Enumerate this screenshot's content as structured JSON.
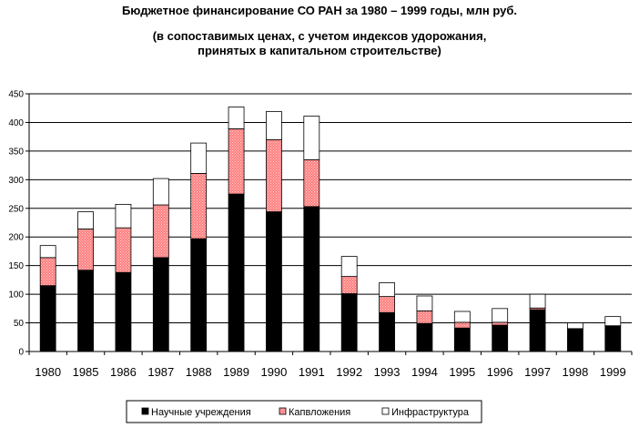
{
  "chart_data": {
    "type": "bar",
    "stacked": true,
    "title": "Бюджетное финансирование СО РАН за 1980 – 1999 годы, млн руб.",
    "subtitle": [
      "(в сопоставимых ценах, с учетом индексов удорожания,",
      "принятых в капитальном строительстве)"
    ],
    "xlabel": "",
    "ylabel": "",
    "ylim": [
      0,
      450
    ],
    "yticks": [
      0,
      50,
      100,
      150,
      200,
      250,
      300,
      350,
      400,
      450
    ],
    "grid": true,
    "legend_position": "bottom",
    "categories": [
      "1980",
      "1985",
      "1986",
      "1987",
      "1988",
      "1989",
      "1990",
      "1991",
      "1992",
      "1993",
      "1994",
      "1995",
      "1996",
      "1997",
      "1998",
      "1999"
    ],
    "series": [
      {
        "name": "Научные учреждения",
        "color": "#000000",
        "values": [
          115,
          142,
          138,
          164,
          197,
          275,
          244,
          253,
          101,
          68,
          49,
          41,
          46,
          73,
          40,
          45
        ]
      },
      {
        "name": "Капвложения",
        "color": "#ff8080",
        "pattern": "dotted",
        "values": [
          49,
          72,
          78,
          92,
          114,
          114,
          126,
          82,
          30,
          28,
          22,
          10,
          5,
          3,
          0,
          0
        ]
      },
      {
        "name": "Инфраструктура",
        "color": "#ffffff",
        "values": [
          21,
          30,
          41,
          46,
          53,
          38,
          49,
          76,
          35,
          24,
          26,
          19,
          24,
          24,
          10,
          16
        ]
      }
    ]
  }
}
